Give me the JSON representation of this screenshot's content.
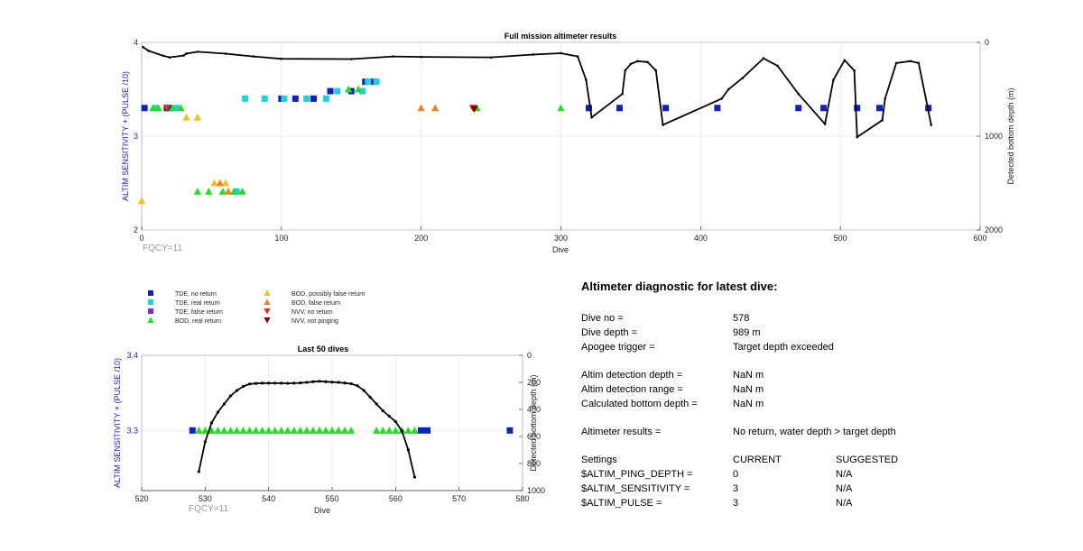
{
  "top_chart": {
    "title": "Full mission altimeter results",
    "ylabel": "ALTIM SENSITIVITY + (PULSE /10)",
    "ylabel_right": "Detected bottom depth (m)",
    "xlabel": "Dive",
    "xticks": [
      "0",
      "100",
      "200",
      "300",
      "400",
      "500",
      "600"
    ],
    "yticks": [
      "2",
      "3",
      "4"
    ],
    "yticks_right": [
      "0",
      "1000",
      "2000"
    ],
    "fqcy_label": "FQCY=11"
  },
  "bottom_chart": {
    "title": "Last 50 dives",
    "ylabel": "ALTIM SENSITIVITY + (PULSE /10)",
    "ylabel_right": "Detected bottom depth (m)",
    "xlabel": "Dive",
    "xticks": [
      "520",
      "530",
      "540",
      "550",
      "560",
      "570",
      "580"
    ],
    "yticks": [
      "3.3",
      "3.4"
    ],
    "yticks_right": [
      "0",
      "200",
      "400",
      "600",
      "800",
      "1000"
    ],
    "fqcy_label": "FQCY=11"
  },
  "legend": [
    {
      "label": "TDE, no return",
      "symbol": "square",
      "color": "#1020c0"
    },
    {
      "label": "TDE, real return",
      "symbol": "square",
      "color": "#20d0e0"
    },
    {
      "label": "TDE, false return",
      "symbol": "square",
      "color": "#8030c0"
    },
    {
      "label": "BOD, real return",
      "symbol": "triangle-up",
      "color": "#20e020"
    },
    {
      "label": "BOD, possibly false return",
      "symbol": "triangle-up",
      "color": "#f0c020"
    },
    {
      "label": "BOD, false return",
      "symbol": "triangle-up",
      "color": "#f08020"
    },
    {
      "label": "NVV, no return",
      "symbol": "triangle-down",
      "color": "#e03010"
    },
    {
      "label": "NVV, not pinging",
      "symbol": "triangle-down",
      "color": "#800000"
    }
  ],
  "diagnostic": {
    "title": "Altimeter diagnostic for latest dive:",
    "dive_no_label": "Dive no =",
    "dive_no": "578",
    "dive_depth_label": "Dive depth =",
    "dive_depth": "989 m",
    "apogee_label": "Apogee trigger =",
    "apogee": "Target depth exceeded",
    "det_depth_label": "Altim detection depth =",
    "det_depth": "NaN m",
    "det_range_label": "Altim detection range =",
    "det_range": "NaN m",
    "calc_depth_label": "Calculated bottom depth =",
    "calc_depth": "NaN m",
    "results_label": "Altimeter results =",
    "results": "No return, water depth > target depth",
    "settings_label": "Settings",
    "current_label": "CURRENT",
    "suggested_label": "SUGGESTED",
    "settings": [
      {
        "name": "$ALTIM_PING_DEPTH =",
        "current": "0",
        "suggested": "N/A"
      },
      {
        "name": "$ALTIM_SENSITIVITY =",
        "current": "3",
        "suggested": "N/A"
      },
      {
        "name": "$ALTIM_PULSE =",
        "current": "3",
        "suggested": "N/A"
      }
    ]
  },
  "chart_data": [
    {
      "type": "scatter",
      "title": "Full mission altimeter results",
      "xlabel": "Dive",
      "ylabel": "ALTIM SENSITIVITY + (PULSE /10)",
      "ylabel_right": "Detected bottom depth (m)",
      "xlim": [
        0,
        600
      ],
      "ylim": [
        2,
        4
      ],
      "ylim_right": [
        2000,
        0
      ],
      "grid": true,
      "series": [
        {
          "name": "TDE, no return",
          "points": [
            [
              2,
              3.3
            ],
            [
              18,
              3.3
            ],
            [
              20,
              3.3
            ],
            [
              100,
              3.4
            ],
            [
              110,
              3.4
            ],
            [
              123,
              3.4
            ],
            [
              135,
              3.48
            ],
            [
              150,
              3.48
            ],
            [
              160,
              3.58
            ],
            [
              166,
              3.58
            ],
            [
              320,
              3.3
            ],
            [
              342,
              3.3
            ],
            [
              375,
              3.3
            ],
            [
              412,
              3.3
            ],
            [
              470,
              3.3
            ],
            [
              488,
              3.3
            ],
            [
              512,
              3.3
            ],
            [
              528,
              3.3
            ],
            [
              563,
              3.3
            ]
          ]
        },
        {
          "name": "TDE, real return",
          "points": [
            [
              10,
              3.3
            ],
            [
              25,
              3.3
            ],
            [
              74,
              3.4
            ],
            [
              88,
              3.4
            ],
            [
              102,
              3.4
            ],
            [
              118,
              3.4
            ],
            [
              132,
              3.4
            ],
            [
              140,
              3.48
            ],
            [
              158,
              3.48
            ],
            [
              162,
              3.58
            ],
            [
              168,
              3.58
            ],
            [
              68,
              2.41
            ]
          ]
        },
        {
          "name": "BOD, real return",
          "points": [
            [
              8,
              3.3
            ],
            [
              12,
              3.3
            ],
            [
              22,
              3.3
            ],
            [
              28,
              3.3
            ],
            [
              40,
              2.41
            ],
            [
              48,
              2.41
            ],
            [
              58,
              2.41
            ],
            [
              66,
              2.41
            ],
            [
              72,
              2.41
            ],
            [
              148,
              3.5
            ],
            [
              155,
              3.5
            ],
            [
              240,
              3.3
            ],
            [
              300,
              3.3
            ]
          ]
        },
        {
          "name": "BOD, possibly false return",
          "points": [
            [
              0,
              2.31
            ],
            [
              32,
              3.2
            ],
            [
              40,
              3.2
            ],
            [
              52,
              2.5
            ],
            [
              60,
              2.5
            ]
          ]
        },
        {
          "name": "BOD, false return",
          "points": [
            [
              56,
              2.5
            ],
            [
              62,
              2.41
            ],
            [
              200,
              3.3
            ],
            [
              210,
              3.3
            ]
          ]
        },
        {
          "name": "NVV, no return",
          "points": [
            [
              18,
              3.3
            ],
            [
              237,
              3.3
            ]
          ]
        },
        {
          "name": "NVV, not pinging",
          "points": [
            [
              238,
              3.29
            ]
          ]
        }
      ],
      "depth_curve_m": [
        [
          1,
          50
        ],
        [
          5,
          90
        ],
        [
          15,
          140
        ],
        [
          20,
          160
        ],
        [
          30,
          140
        ],
        [
          32,
          120
        ],
        [
          40,
          100
        ],
        [
          60,
          120
        ],
        [
          80,
          150
        ],
        [
          100,
          175
        ],
        [
          150,
          178
        ],
        [
          180,
          150
        ],
        [
          200,
          155
        ],
        [
          250,
          160
        ],
        [
          280,
          130
        ],
        [
          300,
          115
        ],
        [
          312,
          150
        ],
        [
          318,
          400
        ],
        [
          322,
          800
        ],
        [
          344,
          550
        ],
        [
          346,
          300
        ],
        [
          350,
          230
        ],
        [
          355,
          200
        ],
        [
          362,
          210
        ],
        [
          368,
          300
        ],
        [
          373,
          880
        ],
        [
          415,
          600
        ],
        [
          420,
          500
        ],
        [
          430,
          380
        ],
        [
          445,
          170
        ],
        [
          455,
          250
        ],
        [
          470,
          550
        ],
        [
          489,
          870
        ],
        [
          495,
          400
        ],
        [
          503,
          190
        ],
        [
          510,
          300
        ],
        [
          512,
          1010
        ],
        [
          530,
          830
        ],
        [
          532,
          600
        ],
        [
          540,
          220
        ],
        [
          550,
          200
        ],
        [
          556,
          220
        ],
        [
          565,
          880
        ]
      ]
    },
    {
      "type": "scatter",
      "title": "Last 50 dives",
      "xlabel": "Dive",
      "ylabel": "ALTIM SENSITIVITY + (PULSE /10)",
      "ylabel_right": "Detected bottom depth (m)",
      "xlim": [
        520,
        580
      ],
      "ylim": [
        3.22,
        3.4
      ],
      "ylim_right": [
        1000,
        0
      ],
      "grid": true,
      "series": [
        {
          "name": "TDE, no return",
          "points": [
            [
              528,
              3.3
            ],
            [
              564,
              3.3
            ],
            [
              565,
              3.3
            ],
            [
              578,
              3.3
            ]
          ]
        },
        {
          "name": "BOD, real return",
          "points": [
            [
              529,
              3.3
            ],
            [
              530,
              3.3
            ],
            [
              531,
              3.3
            ],
            [
              532,
              3.3
            ],
            [
              533,
              3.3
            ],
            [
              534,
              3.3
            ],
            [
              535,
              3.3
            ],
            [
              536,
              3.3
            ],
            [
              537,
              3.3
            ],
            [
              538,
              3.3
            ],
            [
              539,
              3.3
            ],
            [
              540,
              3.3
            ],
            [
              541,
              3.3
            ],
            [
              542,
              3.3
            ],
            [
              543,
              3.3
            ],
            [
              544,
              3.3
            ],
            [
              545,
              3.3
            ],
            [
              546,
              3.3
            ],
            [
              547,
              3.3
            ],
            [
              548,
              3.3
            ],
            [
              549,
              3.3
            ],
            [
              550,
              3.3
            ],
            [
              551,
              3.3
            ],
            [
              552,
              3.3
            ],
            [
              553,
              3.3
            ],
            [
              557,
              3.3
            ],
            [
              558,
              3.3
            ],
            [
              559,
              3.3
            ],
            [
              560,
              3.3
            ],
            [
              561,
              3.3
            ],
            [
              562,
              3.3
            ],
            [
              563,
              3.3
            ]
          ]
        }
      ],
      "depth_curve_m": [
        [
          529,
          860
        ],
        [
          530,
          640
        ],
        [
          531,
          500
        ],
        [
          532,
          420
        ],
        [
          533,
          360
        ],
        [
          534,
          300
        ],
        [
          535,
          260
        ],
        [
          536,
          230
        ],
        [
          537,
          212
        ],
        [
          538,
          208
        ],
        [
          539,
          206
        ],
        [
          540,
          206
        ],
        [
          541,
          206
        ],
        [
          542,
          206
        ],
        [
          543,
          207
        ],
        [
          544,
          206
        ],
        [
          545,
          204
        ],
        [
          546,
          200
        ],
        [
          547,
          195
        ],
        [
          548,
          192
        ],
        [
          549,
          195
        ],
        [
          550,
          198
        ],
        [
          551,
          200
        ],
        [
          552,
          205
        ],
        [
          553,
          210
        ],
        [
          554,
          225
        ],
        [
          555,
          260
        ],
        [
          556,
          310
        ],
        [
          557,
          360
        ],
        [
          558,
          410
        ],
        [
          559,
          450
        ],
        [
          560,
          490
        ],
        [
          561,
          560
        ],
        [
          562,
          700
        ],
        [
          563,
          900
        ]
      ]
    }
  ]
}
